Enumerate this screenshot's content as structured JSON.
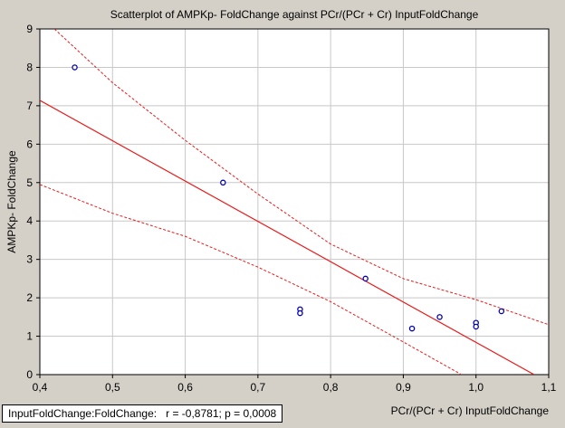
{
  "chart_data": {
    "type": "scatter",
    "title": "Scatterplot of AMPKp- FoldChange against PCr/(PCr + Cr) InputFoldChange",
    "xlabel": "PCr/(PCr + Cr) InputFoldChange",
    "ylabel": "AMPKp- FoldChange",
    "xlim": [
      0.4,
      1.1
    ],
    "ylim": [
      0,
      9
    ],
    "x_ticks": [
      "0,4",
      "0,5",
      "0,6",
      "0,7",
      "0,8",
      "0,9",
      "1,0",
      "1,1"
    ],
    "y_ticks": [
      "0",
      "1",
      "2",
      "3",
      "4",
      "5",
      "6",
      "7",
      "8",
      "9"
    ],
    "grid": true,
    "points": [
      {
        "x": 0.448,
        "y": 8.0
      },
      {
        "x": 0.652,
        "y": 5.0
      },
      {
        "x": 0.758,
        "y": 1.7
      },
      {
        "x": 0.758,
        "y": 1.6
      },
      {
        "x": 0.848,
        "y": 2.5
      },
      {
        "x": 0.912,
        "y": 1.2
      },
      {
        "x": 0.95,
        "y": 1.5
      },
      {
        "x": 1.0,
        "y": 1.35
      },
      {
        "x": 1.0,
        "y": 1.25
      },
      {
        "x": 1.035,
        "y": 1.65
      }
    ],
    "regression_line": [
      {
        "x": 0.4,
        "y": 7.14
      },
      {
        "x": 1.08,
        "y": 0.0
      }
    ],
    "confidence_upper": [
      {
        "x": 0.42,
        "y": 9.0
      },
      {
        "x": 0.5,
        "y": 7.6
      },
      {
        "x": 0.6,
        "y": 6.1
      },
      {
        "x": 0.7,
        "y": 4.7
      },
      {
        "x": 0.8,
        "y": 3.4
      },
      {
        "x": 0.9,
        "y": 2.5
      },
      {
        "x": 1.0,
        "y": 1.95
      },
      {
        "x": 1.1,
        "y": 1.3
      }
    ],
    "confidence_lower": [
      {
        "x": 0.4,
        "y": 4.95
      },
      {
        "x": 0.5,
        "y": 4.2
      },
      {
        "x": 0.6,
        "y": 3.6
      },
      {
        "x": 0.7,
        "y": 2.8
      },
      {
        "x": 0.8,
        "y": 1.9
      },
      {
        "x": 0.9,
        "y": 0.85
      },
      {
        "x": 0.98,
        "y": 0.0
      }
    ],
    "point_color": "#0000b4",
    "line_color": "#e81c1c",
    "stats": "InputFoldChange:FoldChange:   r = -0,8781; p = 0,0008"
  }
}
